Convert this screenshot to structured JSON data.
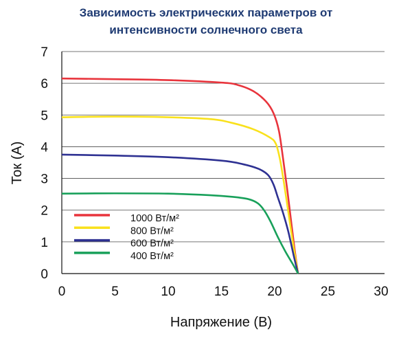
{
  "title_line1": "Зависимость электрических параметров от",
  "title_line2": "интенсивности солнечного света",
  "chart_data": {
    "type": "line",
    "title": "Зависимость электрических параметров от интенсивности солнечного света",
    "xlabel": "Напряжение (В)",
    "ylabel": "Ток (А)",
    "xlim": [
      0,
      30
    ],
    "ylim": [
      0,
      7
    ],
    "x_ticks": [
      0,
      5,
      10,
      15,
      20,
      25,
      30
    ],
    "y_ticks": [
      0,
      1,
      2,
      3,
      4,
      5,
      6,
      7
    ],
    "grid": "horizontal",
    "legend_position": "bottom-left",
    "series": [
      {
        "name": "1000 Вт/м²",
        "color": "#e8343c",
        "points": [
          [
            0,
            6.15
          ],
          [
            5,
            6.13
          ],
          [
            10,
            6.1
          ],
          [
            15,
            6.02
          ],
          [
            16.5,
            5.95
          ],
          [
            18,
            5.75
          ],
          [
            19.2,
            5.42
          ],
          [
            19.9,
            5.05
          ],
          [
            20.4,
            4.5
          ],
          [
            20.8,
            3.6
          ],
          [
            21.2,
            2.6
          ],
          [
            21.6,
            1.5
          ],
          [
            21.9,
            0.7
          ],
          [
            22.2,
            0
          ]
        ]
      },
      {
        "name": "800 Вт/м²",
        "color": "#f9e11c",
        "points": [
          [
            0,
            4.93
          ],
          [
            5,
            4.95
          ],
          [
            10,
            4.93
          ],
          [
            14,
            4.87
          ],
          [
            16,
            4.75
          ],
          [
            18,
            4.55
          ],
          [
            19.5,
            4.3
          ],
          [
            20.1,
            4.1
          ],
          [
            20.5,
            3.6
          ],
          [
            20.9,
            2.8
          ],
          [
            21.3,
            1.9
          ],
          [
            21.7,
            1.0
          ],
          [
            22.0,
            0.4
          ],
          [
            22.2,
            0
          ]
        ]
      },
      {
        "name": "600 Вт/м²",
        "color": "#2e3192",
        "points": [
          [
            0,
            3.75
          ],
          [
            5,
            3.72
          ],
          [
            10,
            3.67
          ],
          [
            15,
            3.56
          ],
          [
            17,
            3.45
          ],
          [
            18.5,
            3.3
          ],
          [
            19.4,
            3.1
          ],
          [
            19.9,
            2.8
          ],
          [
            20.3,
            2.4
          ],
          [
            20.8,
            1.9
          ],
          [
            21.3,
            1.3
          ],
          [
            21.8,
            0.55
          ],
          [
            22.2,
            0
          ]
        ]
      },
      {
        "name": "400 Вт/м²",
        "color": "#18a05a",
        "points": [
          [
            0,
            2.52
          ],
          [
            5,
            2.53
          ],
          [
            10,
            2.52
          ],
          [
            14,
            2.47
          ],
          [
            16,
            2.42
          ],
          [
            17.5,
            2.35
          ],
          [
            18.4,
            2.22
          ],
          [
            19.0,
            2.0
          ],
          [
            19.6,
            1.65
          ],
          [
            20.3,
            1.15
          ],
          [
            21.0,
            0.7
          ],
          [
            21.7,
            0.3
          ],
          [
            22.2,
            0
          ]
        ]
      }
    ]
  }
}
